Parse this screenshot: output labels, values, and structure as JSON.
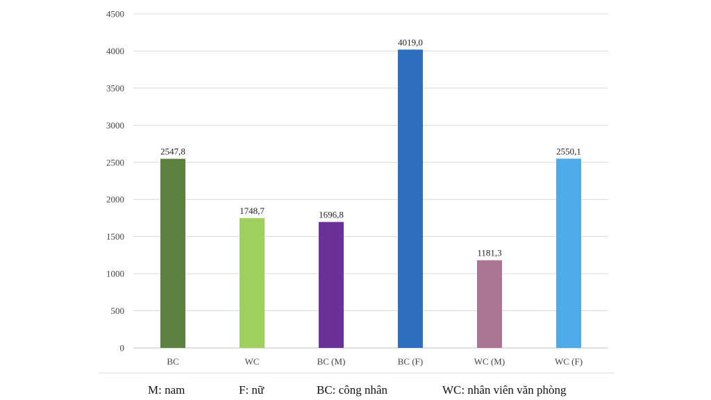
{
  "chart_data": {
    "type": "bar",
    "title": "",
    "xlabel": "",
    "ylabel": "",
    "ylim": [
      0,
      4500
    ],
    "yticks": [
      0,
      500,
      1000,
      1500,
      2000,
      2500,
      3000,
      3500,
      4000,
      4500
    ],
    "ytick_labels": [
      "0",
      "500",
      "1000",
      "1500",
      "2000",
      "2500",
      "3000",
      "3500",
      "4000",
      "4500"
    ],
    "grid": true,
    "categories": [
      "BC",
      "WC",
      "BC (M)",
      "BC (F)",
      "WC (M)",
      "WC (F)"
    ],
    "values": [
      2547.8,
      1748.7,
      1696.8,
      4019.0,
      1181.3,
      2550.1
    ],
    "value_labels": [
      "2547,8",
      "1748,7",
      "1696,8",
      "4019,0",
      "1181,3",
      "2550,1"
    ],
    "colors": [
      "#5b8040",
      "#9fcf5e",
      "#6a3199",
      "#2e6ebf",
      "#ac7693",
      "#4eabe8"
    ],
    "gridline_color": "#d9d9d9",
    "axis_color": "#bfbfbf"
  },
  "legend_notes": [
    "M: nam",
    "F: nữ",
    "BC: công nhân",
    "WC: nhân viên văn phòng"
  ]
}
